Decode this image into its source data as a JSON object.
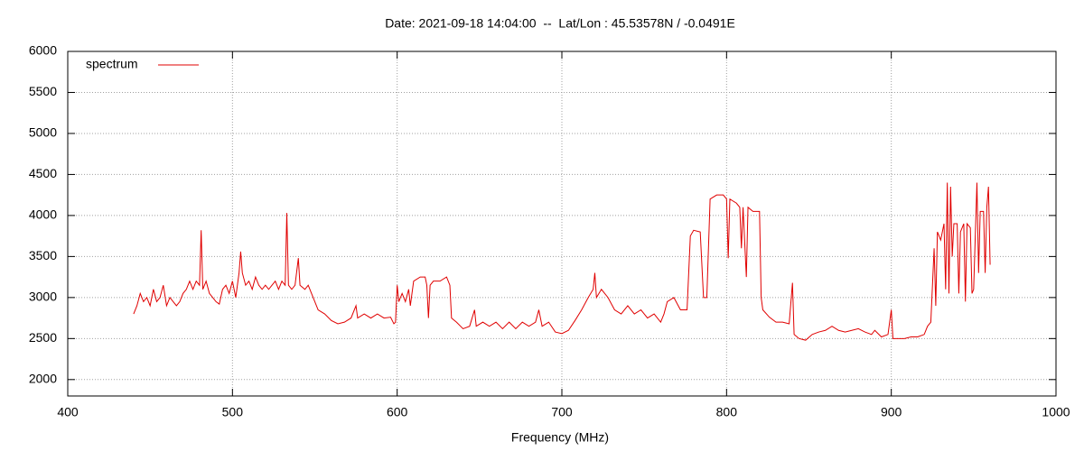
{
  "chart_data": {
    "type": "line",
    "title": "Date: 2021-09-18 14:04:00  --  Lat/Lon : 45.53578N / -0.0491E",
    "xlabel": "Frequency (MHz)",
    "xlim": [
      400,
      1000
    ],
    "xticks": [
      400,
      500,
      600,
      700,
      800,
      900,
      1000
    ],
    "ylim": [
      1800,
      6000
    ],
    "yticks": [
      2000,
      2500,
      3000,
      3500,
      4000,
      4500,
      5000,
      5500,
      6000
    ],
    "grid": true,
    "legend": "top-left",
    "x": [
      440,
      442,
      444,
      446,
      448,
      450,
      452,
      454,
      456,
      458,
      460,
      462,
      464,
      466,
      468,
      470,
      472,
      474,
      476,
      478,
      480,
      481,
      482,
      484,
      486,
      488,
      490,
      492,
      494,
      496,
      498,
      500,
      502,
      504,
      505,
      506,
      508,
      510,
      512,
      514,
      516,
      518,
      520,
      522,
      524,
      526,
      528,
      530,
      532,
      533,
      534,
      536,
      538,
      540,
      541,
      544,
      546,
      548,
      550,
      552,
      556,
      560,
      564,
      568,
      572,
      575,
      576,
      580,
      584,
      588,
      592,
      596,
      598,
      599,
      600,
      601,
      603,
      605,
      607,
      608,
      610,
      614,
      617,
      618,
      619,
      620,
      622,
      626,
      630,
      632,
      633,
      636,
      640,
      644,
      647,
      648,
      652,
      656,
      660,
      664,
      668,
      672,
      676,
      680,
      684,
      686,
      688,
      692,
      696,
      700,
      704,
      708,
      712,
      716,
      719,
      720,
      721,
      724,
      728,
      732,
      736,
      740,
      744,
      748,
      752,
      756,
      760,
      762,
      764,
      768,
      772,
      776,
      778,
      780,
      784,
      786,
      788,
      790,
      794,
      798,
      800,
      801,
      802,
      806,
      808,
      809,
      810,
      812,
      813,
      816,
      820,
      821,
      822,
      826,
      830,
      834,
      838,
      840,
      841,
      844,
      848,
      852,
      856,
      860,
      864,
      868,
      872,
      876,
      880,
      884,
      888,
      890,
      894,
      898,
      900,
      901,
      904,
      908,
      912,
      916,
      920,
      922,
      924,
      926,
      927,
      928,
      930,
      932,
      933,
      934,
      935,
      936,
      937,
      938,
      940,
      941,
      942,
      944,
      945,
      946,
      948,
      949,
      950,
      952,
      953,
      954,
      956,
      957,
      958,
      959,
      960
    ],
    "series": [
      {
        "name": "spectrum",
        "color": "#e00000",
        "values": [
          2800,
          2900,
          3050,
          2950,
          3000,
          2900,
          3100,
          2950,
          3000,
          3150,
          2900,
          3000,
          2950,
          2900,
          2950,
          3050,
          3100,
          3200,
          3100,
          3200,
          3150,
          3820,
          3100,
          3200,
          3050,
          3000,
          2950,
          2920,
          3100,
          3150,
          3050,
          3200,
          3000,
          3300,
          3560,
          3300,
          3150,
          3200,
          3100,
          3250,
          3150,
          3100,
          3150,
          3100,
          3150,
          3200,
          3100,
          3200,
          3150,
          4030,
          3150,
          3100,
          3150,
          3480,
          3150,
          3100,
          3150,
          3050,
          2950,
          2850,
          2800,
          2720,
          2680,
          2700,
          2750,
          2900,
          2750,
          2800,
          2750,
          2800,
          2750,
          2760,
          2680,
          2700,
          3150,
          2950,
          3050,
          2950,
          3100,
          2900,
          3200,
          3250,
          3250,
          3150,
          2750,
          3150,
          3200,
          3200,
          3250,
          3150,
          2750,
          2700,
          2620,
          2650,
          2850,
          2650,
          2700,
          2650,
          2700,
          2620,
          2700,
          2620,
          2700,
          2650,
          2700,
          2850,
          2650,
          2700,
          2580,
          2560,
          2600,
          2720,
          2850,
          3000,
          3100,
          3300,
          3000,
          3100,
          3000,
          2850,
          2800,
          2900,
          2800,
          2850,
          2750,
          2800,
          2700,
          2800,
          2950,
          3000,
          2850,
          2850,
          3750,
          3820,
          3800,
          3000,
          3000,
          4200,
          4250,
          4250,
          4200,
          3480,
          4200,
          4150,
          4100,
          3600,
          4100,
          3250,
          4100,
          4050,
          4050,
          3000,
          2850,
          2760,
          2700,
          2700,
          2680,
          3180,
          2550,
          2500,
          2480,
          2550,
          2580,
          2600,
          2650,
          2600,
          2580,
          2600,
          2620,
          2580,
          2550,
          2600,
          2520,
          2550,
          2850,
          2500,
          2500,
          2500,
          2520,
          2520,
          2550,
          2650,
          2700,
          3600,
          2900,
          3800,
          3700,
          3900,
          3100,
          4400,
          3050,
          4350,
          3500,
          3900,
          3900,
          3050,
          3800,
          3900,
          2950,
          3900,
          3850,
          3050,
          3100,
          4400,
          3300,
          4050,
          4050,
          3300,
          4100,
          4350,
          3400
        ]
      }
    ]
  }
}
